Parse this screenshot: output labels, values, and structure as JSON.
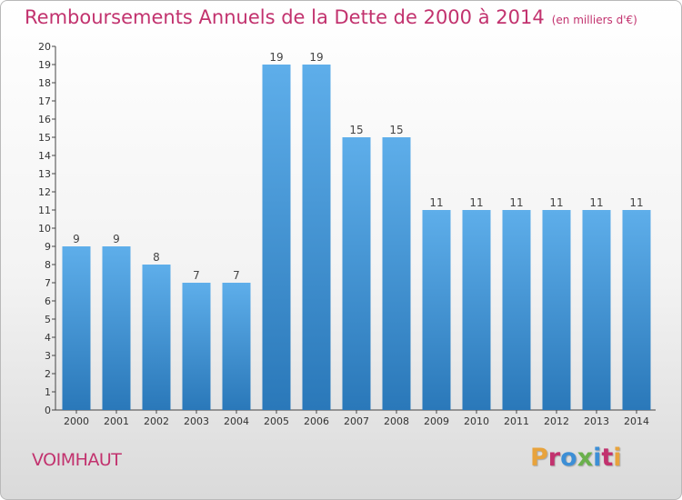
{
  "header": {
    "title": "Remboursements Annuels de la Dette de 2000 à 2014",
    "subtitle": "(en milliers d'€)"
  },
  "footer": {
    "place": "VOIMHAUT",
    "logo": "Proxiti",
    "logo_colors": [
      "#e8a33c",
      "#c2326e",
      "#3d8fd6",
      "#6ab04c",
      "#3d8fd6",
      "#c2326e",
      "#e8a33c"
    ]
  },
  "colors": {
    "accent": "#c2326e",
    "bar": "#3d8fd6",
    "bar_light": "#6ab5ec",
    "bar_dark": "#2a78b9"
  },
  "chart_data": {
    "type": "bar",
    "categories": [
      "2000",
      "2001",
      "2002",
      "2003",
      "2004",
      "2005",
      "2006",
      "2007",
      "2008",
      "2009",
      "2010",
      "2011",
      "2012",
      "2013",
      "2014"
    ],
    "values": [
      9,
      9,
      8,
      7,
      7,
      19,
      19,
      15,
      15,
      11,
      11,
      11,
      11,
      11,
      11
    ],
    "ylim": [
      0,
      20
    ],
    "yticks": [
      0,
      1,
      2,
      3,
      4,
      5,
      6,
      7,
      8,
      9,
      10,
      11,
      12,
      13,
      14,
      15,
      16,
      17,
      18,
      19,
      20
    ],
    "grid": false,
    "data_labels": true
  }
}
